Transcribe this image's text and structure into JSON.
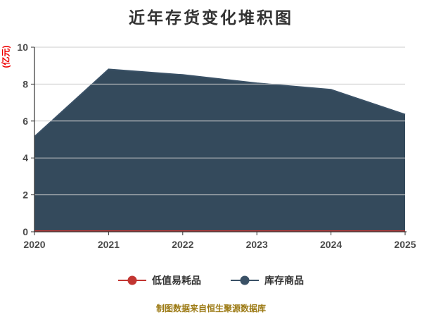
{
  "title": "近年存货变化堆积图",
  "y_axis_name": "(亿元)",
  "caption": "制图数据来自恒生聚源数据库",
  "legend": {
    "items": [
      {
        "label": "低值易耗品",
        "color": "#c23531"
      },
      {
        "label": "库存商品",
        "color": "#3a5166"
      }
    ]
  },
  "chart_data": {
    "type": "area",
    "stacked": true,
    "title": "近年存货变化堆积图",
    "x": [
      "2020",
      "2021",
      "2022",
      "2023",
      "2024",
      "2025"
    ],
    "series": [
      {
        "name": "低值易耗品",
        "color": "#c23531",
        "line_color": "#c23531",
        "values": [
          0.05,
          0.05,
          0.05,
          0.05,
          0.05,
          0.05
        ]
      },
      {
        "name": "库存商品",
        "color": "#344a5c",
        "line_color": "#3a5166",
        "values": [
          5.1,
          8.75,
          8.45,
          8.0,
          7.65,
          6.3
        ]
      }
    ],
    "xlabel": "",
    "ylabel": "(亿元)",
    "ylim": [
      0,
      10
    ],
    "yticks": [
      0,
      2,
      4,
      6,
      8,
      10
    ],
    "grid": true,
    "legend_position": "bottom"
  },
  "colors": {
    "background": "#ffffff",
    "title_text": "#333333",
    "legend_text": "#333333",
    "axis_line": "#333333",
    "axis_label": "#4a4a4a",
    "gridline": "#cccccc",
    "y_axis_name_text": "#ee0000",
    "caption_text": "#9c7a14"
  }
}
